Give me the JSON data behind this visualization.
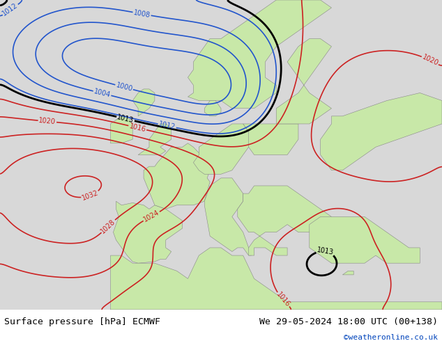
{
  "title_left": "Surface pressure [hPa] ECMWF",
  "title_right": "We 29-05-2024 18:00 UTC (00+138)",
  "credit": "©weatheronline.co.uk",
  "fig_width": 6.34,
  "fig_height": 4.9,
  "dpi": 100,
  "land_color": "#c8e8a8",
  "sea_color": "#d8d8d8",
  "bg_color": "#d8d8d8",
  "title_font_size": 9.5,
  "credit_color": "#0044bb",
  "contour_low_color": "#2255cc",
  "contour_high_color": "#cc2222",
  "contour_mid_color": "#000000",
  "contour_lw": 1.2,
  "contour_mid_lw": 2.0,
  "label_fontsize": 7
}
